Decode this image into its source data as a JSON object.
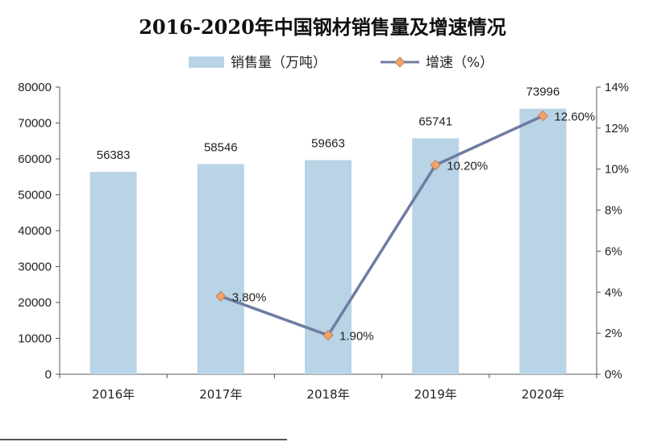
{
  "chart_data": {
    "type": "bar",
    "title": "2016-2020年中国钢材销售量及增速情况",
    "categories": [
      "2016年",
      "2017年",
      "2018年",
      "2019年",
      "2020年"
    ],
    "series": [
      {
        "name": "销售量（万吨）",
        "type": "bar",
        "axis": "left",
        "values": [
          56383,
          58546,
          59663,
          65741,
          73996
        ],
        "labels": [
          "56383",
          "58546",
          "59663",
          "65741",
          "73996"
        ],
        "color": "#b8d4e6"
      },
      {
        "name": "增速（%）",
        "type": "line",
        "axis": "right",
        "values": [
          null,
          3.8,
          1.9,
          10.2,
          12.6
        ],
        "labels": [
          "",
          "3.80%",
          "1.90%",
          "10.20%",
          "12.60%"
        ],
        "color": "#6f7ca2",
        "marker_color": "#f0a46c"
      }
    ],
    "ylim_left": [
      0,
      80000
    ],
    "ylim_right": [
      0,
      14
    ],
    "left_ticks": [
      "0",
      "10000",
      "20000",
      "30000",
      "40000",
      "50000",
      "60000",
      "70000",
      "80000"
    ],
    "right_ticks": [
      "0%",
      "2%",
      "4%",
      "6%",
      "8%",
      "10%",
      "12%",
      "14%"
    ],
    "legend_position": "top",
    "grid": false
  }
}
